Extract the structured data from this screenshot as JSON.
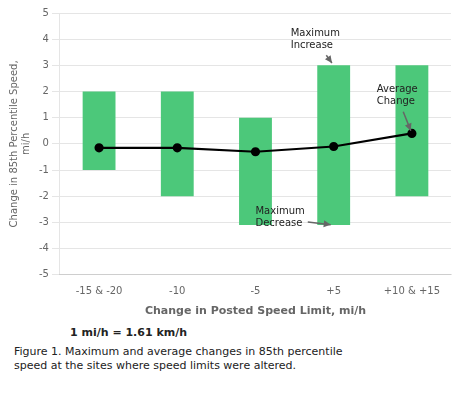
{
  "chart_data": {
    "type": "bar",
    "categories": [
      "-15 & -20",
      "-10",
      "-5",
      "+5",
      "+10 & +15"
    ],
    "series": [
      {
        "type": "bar",
        "color": "#4cc87a",
        "values": [
          [
            -1.0,
            2.0
          ],
          [
            -2.0,
            2.0
          ],
          [
            -3.1,
            1.0
          ],
          [
            -3.1,
            3.0
          ],
          [
            -2.0,
            3.0
          ]
        ]
      },
      {
        "type": "line",
        "color": "black",
        "marker": "circle",
        "values": [
          -0.15,
          -0.15,
          -0.3,
          -0.1,
          0.4
        ]
      }
    ],
    "xlabel": "Change in Posted Speed Limit, mi/h",
    "ylabel": "Change in 85th Percentile Speed,\nmi/h",
    "ylim": [
      -5,
      5
    ],
    "yticks": [
      -5,
      -4,
      -3,
      -2,
      -1,
      0,
      1,
      2,
      3,
      4,
      5
    ],
    "grid": true,
    "annotations": [
      {
        "text": "Maximum\nIncrease",
        "category": "+5",
        "y": 3.0
      },
      {
        "text": "Maximum\nDecrease",
        "category": "+5",
        "y": -3.1
      },
      {
        "text": "Average\nChange",
        "category": "+10 & +15",
        "y": 0.4
      }
    ],
    "unit_note": "1 mi/h = 1.61 km/h",
    "caption": "Figure 1. Maximum and average changes in 85th percentile\nspeed at the sites where speed limits were altered."
  }
}
